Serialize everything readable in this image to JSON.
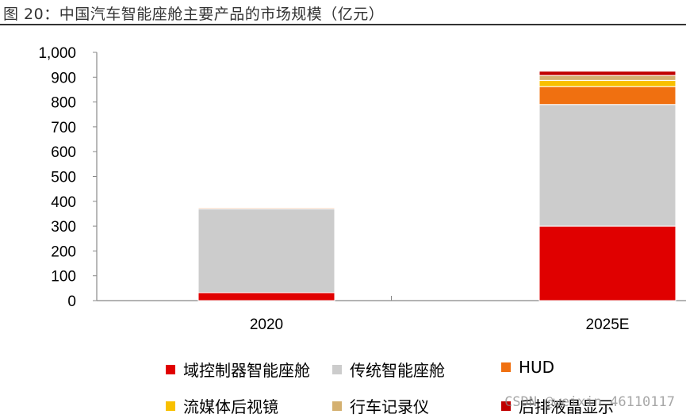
{
  "figure": {
    "title": "图 20：中国汽车智能座舱主要产品的市场规模（亿元）",
    "watermark": "CSDN @weixin_46110117"
  },
  "chart_data": {
    "type": "bar",
    "stacked": true,
    "categories": [
      "2020",
      "2025E"
    ],
    "ylim": [
      0,
      1000
    ],
    "yticks": [
      0,
      100,
      200,
      300,
      400,
      500,
      600,
      700,
      800,
      900,
      1000
    ],
    "ytick_labels": [
      "0",
      "100",
      "200",
      "300",
      "400",
      "500",
      "600",
      "700",
      "800",
      "900",
      "1,000"
    ],
    "grid": false,
    "legend_position": "bottom",
    "series": [
      {
        "name": "域控制器智能座舱",
        "color": "#e00000",
        "values": [
          32,
          300
        ]
      },
      {
        "name": "传统智能座舱",
        "color": "#cccccc",
        "values": [
          338,
          490
        ]
      },
      {
        "name": "HUD",
        "color": "#f07010",
        "values": [
          4,
          72
        ]
      },
      {
        "name": "流媒体后视镜",
        "color": "#f8c000",
        "values": [
          2,
          25
        ]
      },
      {
        "name": "行车记录仪",
        "color": "#d4b070",
        "values": [
          3,
          20
        ]
      },
      {
        "name": "后排液晶显示",
        "color": "#c00000",
        "values": [
          1,
          17
        ]
      }
    ]
  }
}
